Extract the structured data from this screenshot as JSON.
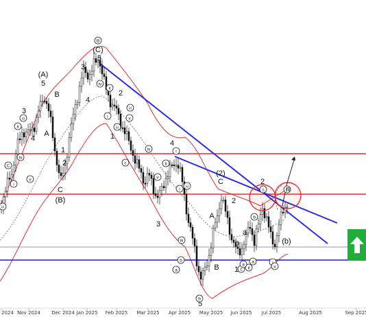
{
  "chart_data": {
    "type": "line",
    "title": "",
    "xlabel": "",
    "ylabel": "",
    "x_tick_labels": [
      "2024",
      "Nov 2024",
      "Dec 2024",
      "Jan 2025",
      "Feb 2025",
      "Mar 2025",
      "Apr 2025",
      "May 2025",
      "Jun 2025",
      "Jul 2025",
      "Aug 2025",
      "Sep 2025"
    ],
    "price_axis_visible": false,
    "grid": false,
    "legend": "none",
    "colors": {
      "candles": "#111111",
      "envelope": "#e03030",
      "horizontal_levels": "#e03030",
      "trendlines": "#2a2ae0",
      "support_blue": "#1a1ac8",
      "grey_level": "#9a9a9a",
      "target_circles": "#e03030",
      "buy_signal": "#1fae3a"
    },
    "annotations": {
      "elliptical_wave_labels": [
        "B",
        "C",
        "ii",
        "iii",
        "iv",
        "i",
        "v",
        "iii",
        "iv",
        "ii",
        "i",
        "iii",
        "v",
        "iii",
        "c",
        "i",
        "ii",
        "iv",
        "v",
        "i",
        "iii",
        "b",
        "a",
        "b",
        "c",
        "a",
        "ii",
        "iv",
        "b",
        "i",
        "v",
        "c",
        "a",
        "n"
      ],
      "parenthesized_wave_labels": [
        "(A)",
        "(C)",
        "(B)",
        "(2)",
        "(b)"
      ],
      "plain_wave_labels": [
        "5",
        "3",
        "B",
        "A",
        "4",
        "1",
        "2",
        "C",
        "3",
        "4",
        "5",
        "2",
        "1",
        "4",
        "3",
        "C",
        "A",
        "B",
        "1",
        "2",
        "5",
        "a",
        "b"
      ],
      "target_circle_labels": [
        "2",
        "n"
      ]
    }
  },
  "signal": {
    "direction": "up-arrow"
  }
}
